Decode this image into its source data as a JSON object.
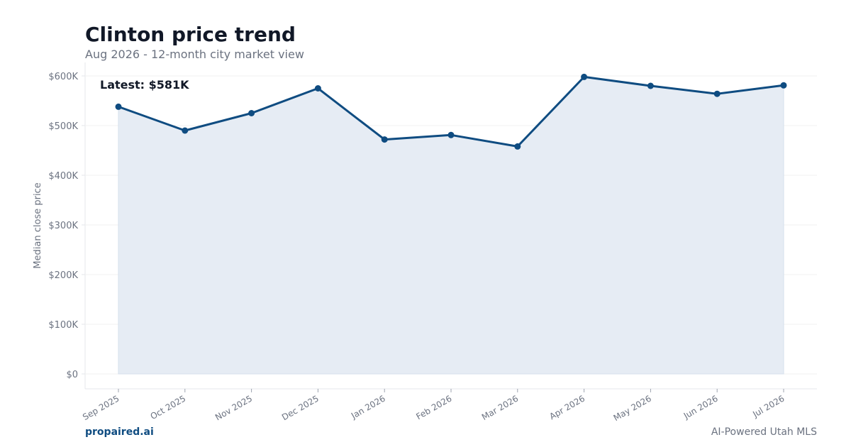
{
  "header": {
    "title": "Clinton price trend",
    "subtitle": "Aug 2026 - 12-month city market view"
  },
  "footer": {
    "brand": "propaired.ai",
    "tagline": "AI-Powered Utah MLS"
  },
  "chart_data": {
    "type": "area",
    "title": "Clinton price trend",
    "subtitle": "Aug 2026 - 12-month city market view",
    "xlabel": "",
    "ylabel": "Median close price",
    "categories": [
      "Sep 2025",
      "Oct 2025",
      "Nov 2025",
      "Dec 2025",
      "Jan 2026",
      "Feb 2026",
      "Mar 2026",
      "Apr 2026",
      "May 2026",
      "Jun 2026",
      "Jul 2026"
    ],
    "values": [
      538000,
      490000,
      525000,
      575000,
      472000,
      481000,
      458000,
      598000,
      580000,
      564000,
      581000
    ],
    "ylim": [
      0,
      600000
    ],
    "yticks": [
      0,
      100000,
      200000,
      300000,
      400000,
      500000,
      600000
    ],
    "ytick_labels": [
      "$0",
      "$100K",
      "$200K",
      "$300K",
      "$400K",
      "$500K",
      "$600K"
    ],
    "annotation": "Latest: $581K",
    "grid": true,
    "legend": "none",
    "colors": {
      "line": "#0f4c81",
      "fill": "#e6ecf4",
      "grid": "#f0f0f0",
      "axis": "#e5e7eb",
      "text": "#6b7280"
    }
  }
}
